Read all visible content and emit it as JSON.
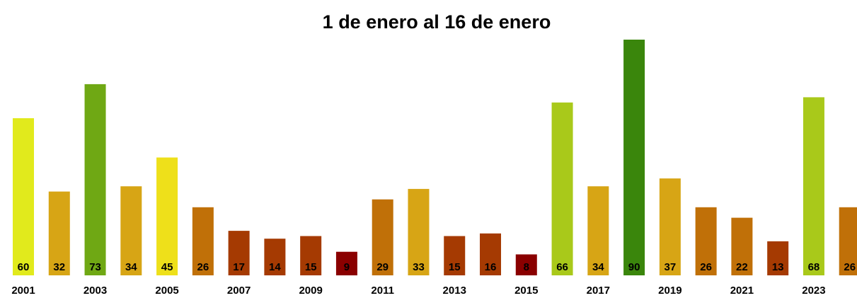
{
  "chart_data": {
    "type": "bar",
    "title": "1 de enero al 16 de enero",
    "categories": [
      "2001",
      null,
      "2003",
      null,
      "2005",
      null,
      "2007",
      null,
      "2009",
      null,
      "2011",
      null,
      "2013",
      null,
      "2015",
      null,
      "2017",
      null,
      "2019",
      null,
      "2021",
      null,
      "2023",
      null
    ],
    "values": [
      60,
      32,
      73,
      34,
      45,
      26,
      17,
      14,
      15,
      9,
      29,
      33,
      15,
      16,
      8,
      66,
      34,
      90,
      37,
      26,
      22,
      13,
      68,
      26
    ],
    "colors": [
      "#e1ea1c",
      "#d7a515",
      "#6fa814",
      "#d7a515",
      "#eee01a",
      "#c07008",
      "#a53a02",
      "#a53a02",
      "#a53a02",
      "#8a0000",
      "#c07008",
      "#d7a515",
      "#a53a02",
      "#a53a02",
      "#8a0000",
      "#a9c91a",
      "#d7a515",
      "#3a860c",
      "#d7a515",
      "#c07008",
      "#c07008",
      "#a53a02",
      "#a9c91a",
      "#c07008"
    ],
    "ylim": [
      0,
      90
    ]
  }
}
